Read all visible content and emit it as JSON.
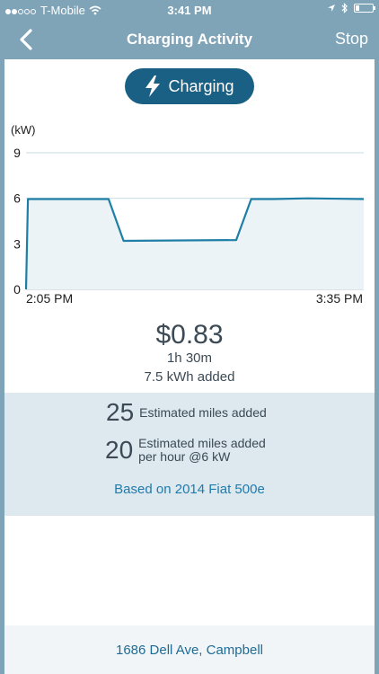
{
  "status_bar": {
    "carrier": "T-Mobile",
    "time": "3:41 PM",
    "signal_bars_filled": 2,
    "signal_bars_total": 5,
    "battery_level": 0.15
  },
  "nav": {
    "title": "Charging Activity",
    "stop_label": "Stop",
    "back_icon": "chevron-left-icon"
  },
  "status_pill": {
    "label": "Charging",
    "icon": "lightning-icon"
  },
  "chart_data": {
    "type": "line",
    "ylabel": "(kW)",
    "yticks": [
      0,
      3,
      6,
      9
    ],
    "ylim": [
      0,
      9
    ],
    "x_start_label": "2:05 PM",
    "x_end_label": "3:35 PM",
    "x": [
      0,
      0.5,
      22,
      26,
      56,
      60,
      66,
      75,
      90
    ],
    "values": [
      0,
      5.95,
      5.95,
      3.2,
      3.25,
      5.95,
      5.95,
      6.0,
      5.95
    ],
    "xlim": [
      0,
      90
    ],
    "grid": true,
    "line_color": "#1f7ea6",
    "fill_color": "#ecf3f7"
  },
  "summary": {
    "cost": "$0.83",
    "duration": "1h 30m",
    "energy": "7.5 kWh added"
  },
  "estimates": {
    "miles_added": "25",
    "miles_added_label": "Estimated miles added",
    "miles_per_hour": "20",
    "miles_per_hour_label_line1": "Estimated miles added",
    "miles_per_hour_label_line2": "per hour @6 kW",
    "based_on": "Based on 2014 Fiat 500e"
  },
  "footer": {
    "address": "1686 Dell Ave, Campbell"
  },
  "colors": {
    "nav_bg": "#7fa3b7",
    "accent": "#1a5f84",
    "link": "#1f7bab"
  }
}
